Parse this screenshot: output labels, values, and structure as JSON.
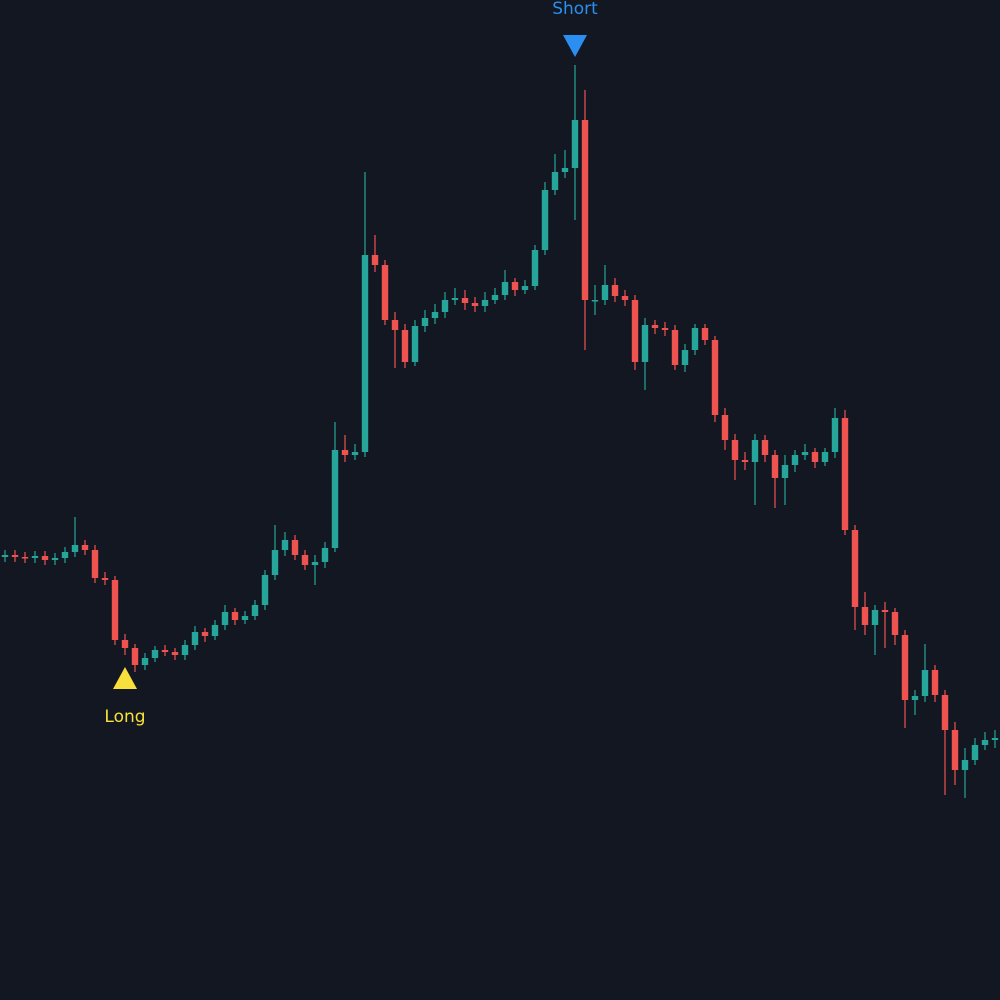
{
  "chart_data": {
    "type": "candlestick",
    "ylim": [
      0,
      1000
    ],
    "up_color": "#26a69a",
    "down_color": "#ef5350",
    "background": "#131722",
    "open": [
      443,
      445,
      443,
      442,
      444,
      440,
      442,
      448,
      455,
      450,
      422,
      420,
      360,
      352,
      335,
      342,
      350,
      348,
      345,
      355,
      368,
      364,
      375,
      388,
      380,
      384,
      395,
      425,
      450,
      460,
      445,
      435,
      438,
      452,
      550,
      545,
      548,
      745,
      735,
      680,
      670,
      638,
      674,
      682,
      688,
      700,
      702,
      697,
      694,
      700,
      705,
      718,
      710,
      714,
      750,
      810,
      828,
      832,
      880,
      700,
      700,
      715,
      704,
      700,
      638,
      675,
      672,
      670,
      635,
      650,
      672,
      660,
      585,
      560,
      540,
      538,
      560,
      545,
      522,
      535,
      545,
      548,
      538,
      548,
      582,
      470,
      393,
      375,
      390,
      388,
      365,
      300,
      304,
      330,
      305,
      270,
      230,
      240,
      255,
      260
    ],
    "high": [
      450,
      450,
      448,
      449,
      449,
      447,
      453,
      483,
      460,
      455,
      428,
      424,
      366,
      356,
      347,
      354,
      355,
      352,
      360,
      374,
      372,
      380,
      395,
      392,
      389,
      400,
      430,
      475,
      468,
      465,
      450,
      445,
      458,
      578,
      565,
      556,
      828,
      765,
      740,
      688,
      676,
      680,
      690,
      696,
      708,
      712,
      710,
      703,
      708,
      712,
      730,
      722,
      720,
      755,
      818,
      846,
      850,
      935,
      910,
      715,
      735,
      722,
      710,
      705,
      682,
      680,
      678,
      675,
      656,
      676,
      676,
      664,
      592,
      566,
      548,
      566,
      565,
      550,
      545,
      550,
      556,
      552,
      552,
      592,
      590,
      475,
      408,
      395,
      398,
      392,
      370,
      310,
      356,
      335,
      310,
      278,
      252,
      262,
      268,
      270
    ],
    "low": [
      438,
      438,
      437,
      437,
      435,
      435,
      437,
      443,
      445,
      417,
      415,
      355,
      345,
      328,
      330,
      338,
      344,
      340,
      340,
      350,
      358,
      360,
      370,
      375,
      376,
      380,
      390,
      420,
      444,
      440,
      430,
      415,
      432,
      448,
      538,
      540,
      543,
      728,
      675,
      632,
      632,
      634,
      668,
      676,
      682,
      695,
      690,
      688,
      688,
      696,
      700,
      704,
      706,
      710,
      745,
      805,
      822,
      780,
      650,
      685,
      695,
      698,
      694,
      630,
      610,
      666,
      664,
      630,
      628,
      645,
      655,
      578,
      550,
      520,
      530,
      495,
      538,
      492,
      495,
      528,
      540,
      532,
      534,
      542,
      465,
      370,
      365,
      345,
      352,
      355,
      272,
      285,
      298,
      298,
      205,
      215,
      202,
      235,
      250,
      252
    ],
    "close": [
      445,
      443,
      442,
      444,
      440,
      442,
      448,
      455,
      450,
      422,
      420,
      360,
      352,
      335,
      342,
      350,
      348,
      345,
      355,
      368,
      364,
      375,
      388,
      380,
      384,
      395,
      425,
      450,
      460,
      445,
      435,
      438,
      452,
      550,
      545,
      548,
      745,
      735,
      680,
      670,
      638,
      674,
      682,
      688,
      700,
      702,
      697,
      694,
      700,
      705,
      718,
      710,
      714,
      750,
      810,
      828,
      832,
      880,
      700,
      700,
      715,
      704,
      700,
      638,
      675,
      672,
      670,
      635,
      650,
      672,
      660,
      585,
      560,
      540,
      538,
      560,
      545,
      522,
      535,
      545,
      548,
      538,
      548,
      582,
      470,
      393,
      375,
      390,
      388,
      365,
      300,
      304,
      330,
      305,
      270,
      230,
      240,
      255,
      260,
      262
    ],
    "markers": [
      {
        "label": "Long",
        "index": 12,
        "position": "below",
        "color": "#f7e03c"
      },
      {
        "label": "Short",
        "index": 57,
        "position": "above",
        "color": "#2a8ff0"
      }
    ]
  }
}
